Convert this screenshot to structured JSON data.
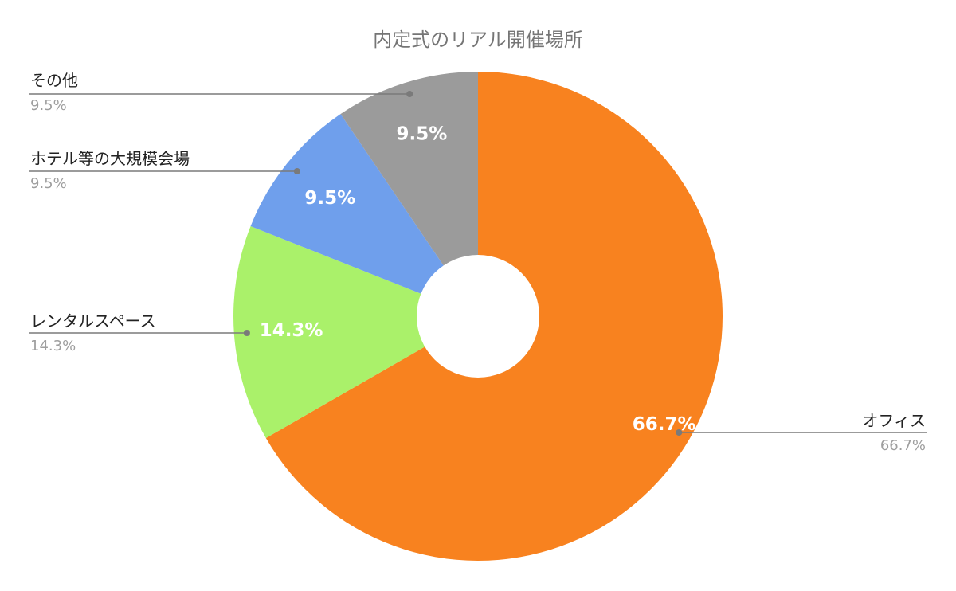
{
  "chart_data": {
    "type": "pie",
    "donut": true,
    "title": "内定式のリアル開催場所",
    "start_angle_deg": 0,
    "direction": "clockwise",
    "slices": [
      {
        "label": "オフィス",
        "value": 66.7,
        "display": "66.7%",
        "color": "#f8821f"
      },
      {
        "label": "レンタルスペース",
        "value": 14.3,
        "display": "14.3%",
        "color": "#aaf16a"
      },
      {
        "label": "ホテル等の大規模会場",
        "value": 9.5,
        "display": "9.5%",
        "color": "#6f9fec"
      },
      {
        "label": "その他",
        "value": 9.5,
        "display": "9.5%",
        "color": "#9b9b9b"
      }
    ],
    "legend": "leader-line labels"
  }
}
